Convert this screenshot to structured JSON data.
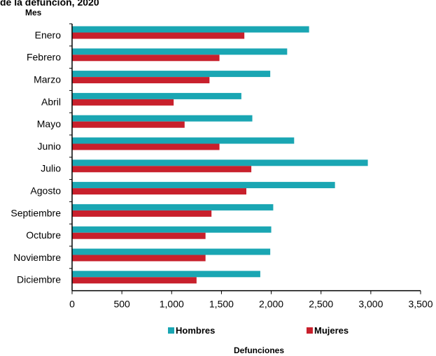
{
  "chart_data": {
    "type": "bar",
    "orientation": "horizontal",
    "title": "de la defunción, 2020",
    "ylabel": "Mes",
    "xlabel": "Defunciones",
    "categories": [
      "Enero",
      "Febrero",
      "Marzo",
      "Abril",
      "Mayo",
      "Junio",
      "Julio",
      "Agosto",
      "Septiembre",
      "Octubre",
      "Noviembre",
      "Diciembre"
    ],
    "series": [
      {
        "name": "Hombres",
        "color": "#1aa6b3",
        "values": [
          2380,
          2160,
          1990,
          1700,
          1810,
          2230,
          2970,
          2640,
          2020,
          2000,
          1990,
          1890
        ]
      },
      {
        "name": "Mujeres",
        "color": "#c8202c",
        "values": [
          1730,
          1480,
          1380,
          1020,
          1130,
          1480,
          1800,
          1750,
          1400,
          1340,
          1340,
          1250
        ]
      }
    ],
    "xlim": [
      0,
      3500
    ],
    "xticks": [
      0,
      500,
      1000,
      1500,
      2000,
      2500,
      3000,
      3500
    ],
    "xtick_labels": [
      "0",
      "500",
      "1,000",
      "1,500",
      "2,000",
      "2,500",
      "3,000",
      "3,500"
    ],
    "grid": false,
    "legend_position": "bottom"
  }
}
